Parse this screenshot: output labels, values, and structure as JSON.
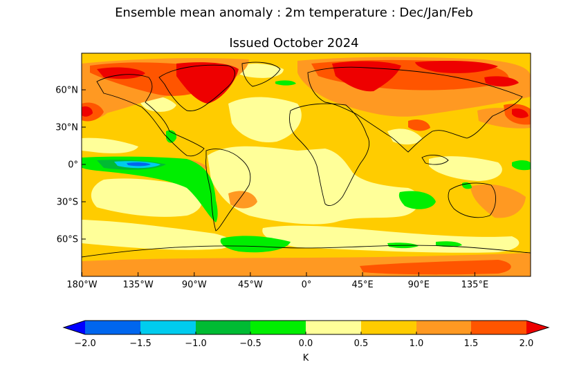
{
  "title": "Ensemble mean anomaly : 2m temperature : Dec/Jan/Feb",
  "subtitle": "Issued October 2024",
  "map": {
    "lon_ticks": [
      "180°W",
      "135°W",
      "90°W",
      "45°W",
      "0°",
      "45°E",
      "90°E",
      "135°E"
    ],
    "lat_ticks": [
      "60°N",
      "30°N",
      "0°",
      "30°S",
      "60°S"
    ]
  },
  "colorbar": {
    "unit": "K",
    "tick_labels": [
      "−2.0",
      "−1.5",
      "−1.0",
      "−0.5",
      "0.0",
      "0.5",
      "1.0",
      "1.5",
      "2.0"
    ],
    "colors": [
      "#0000ff",
      "#0066ee",
      "#00ccee",
      "#00bb33",
      "#00ee00",
      "#ffff99",
      "#ffcc00",
      "#ff9922",
      "#ff5500",
      "#ee0000"
    ]
  }
}
